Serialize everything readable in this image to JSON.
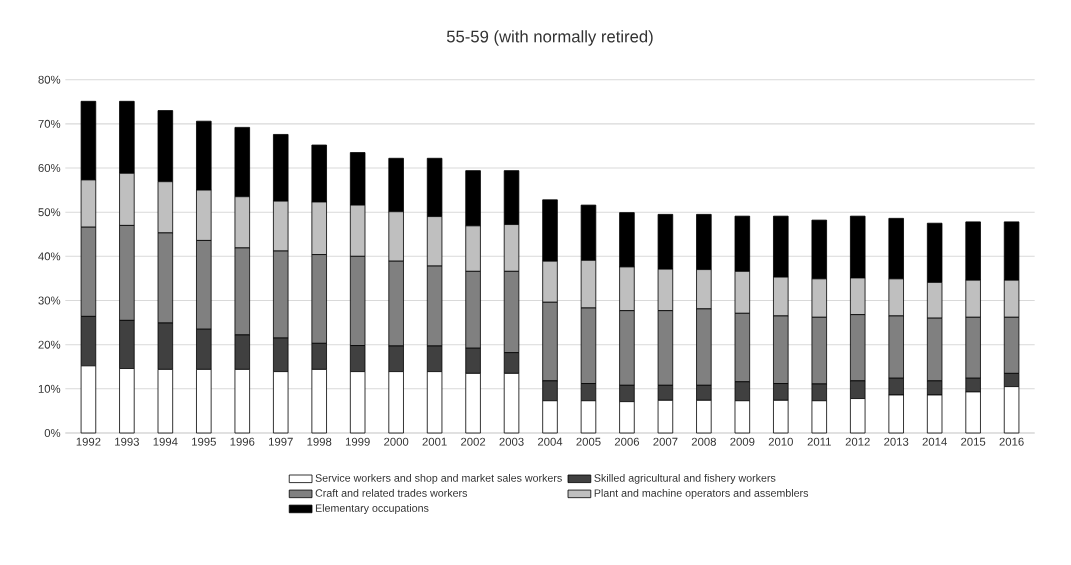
{
  "chart_data": {
    "type": "bar",
    "stacked": true,
    "title": "55-59 (with normally retired)",
    "categories": [
      "1992",
      "1993",
      "1994",
      "1995",
      "1996",
      "1997",
      "1998",
      "1999",
      "2000",
      "2001",
      "2002",
      "2003",
      "2004",
      "2005",
      "2006",
      "2007",
      "2008",
      "2009",
      "2010",
      "2011",
      "2012",
      "2013",
      "2014",
      "2015",
      "2016"
    ],
    "series": [
      {
        "name": "Service workers and shop and market sales workers",
        "color": "#ffffff",
        "values": [
          15.2,
          14.6,
          14.4,
          14.4,
          14.4,
          13.9,
          14.4,
          13.9,
          13.9,
          13.9,
          13.5,
          13.5,
          7.3,
          7.3,
          7.1,
          7.4,
          7.4,
          7.3,
          7.4,
          7.3,
          7.8,
          8.6,
          8.6,
          9.3,
          10.5
        ]
      },
      {
        "name": "Skilled agricultural and fishery workers",
        "color": "#404040",
        "values": [
          11.2,
          10.9,
          10.5,
          9.1,
          7.8,
          7.6,
          5.9,
          5.9,
          5.8,
          5.8,
          5.7,
          4.7,
          4.5,
          3.9,
          3.7,
          3.4,
          3.4,
          4.3,
          3.8,
          3.8,
          4.0,
          3.8,
          3.2,
          3.1,
          3.0
        ]
      },
      {
        "name": "Craft and related trades workers",
        "color": "#808080",
        "values": [
          20.2,
          21.5,
          20.4,
          20.1,
          19.7,
          19.7,
          20.1,
          20.2,
          19.2,
          18.1,
          17.4,
          18.4,
          17.8,
          17.1,
          16.9,
          16.9,
          17.3,
          15.5,
          15.3,
          15.1,
          15.0,
          14.1,
          14.2,
          13.8,
          12.7
        ]
      },
      {
        "name": "Plant and machine operators and assemblers",
        "color": "#bfbfbf",
        "values": [
          10.7,
          11.8,
          11.6,
          11.4,
          11.6,
          11.3,
          11.9,
          11.6,
          11.2,
          11.2,
          10.3,
          10.6,
          9.3,
          10.8,
          9.9,
          9.4,
          8.9,
          9.5,
          8.8,
          8.7,
          8.3,
          8.4,
          8.1,
          8.4,
          8.4
        ]
      },
      {
        "name": "Elementary occupations",
        "color": "#000000",
        "values": [
          17.8,
          16.3,
          16.1,
          15.6,
          15.7,
          15.1,
          12.9,
          11.9,
          12.1,
          13.2,
          12.5,
          12.2,
          13.9,
          12.5,
          12.3,
          12.4,
          12.5,
          12.5,
          13.8,
          13.3,
          14.0,
          13.7,
          13.4,
          13.2,
          13.2
        ]
      }
    ],
    "ylim": [
      0,
      80
    ],
    "yticks": [
      {
        "value": 0,
        "label": "0%"
      },
      {
        "value": 10,
        "label": "10%"
      },
      {
        "value": 20,
        "label": "20%"
      },
      {
        "value": 30,
        "label": "30%"
      },
      {
        "value": 40,
        "label": "40%"
      },
      {
        "value": 50,
        "label": "50%"
      },
      {
        "value": 60,
        "label": "60%"
      },
      {
        "value": 70,
        "label": "70%"
      },
      {
        "value": 80,
        "label": "80%"
      }
    ],
    "grid": "y",
    "legend": "bottom"
  }
}
